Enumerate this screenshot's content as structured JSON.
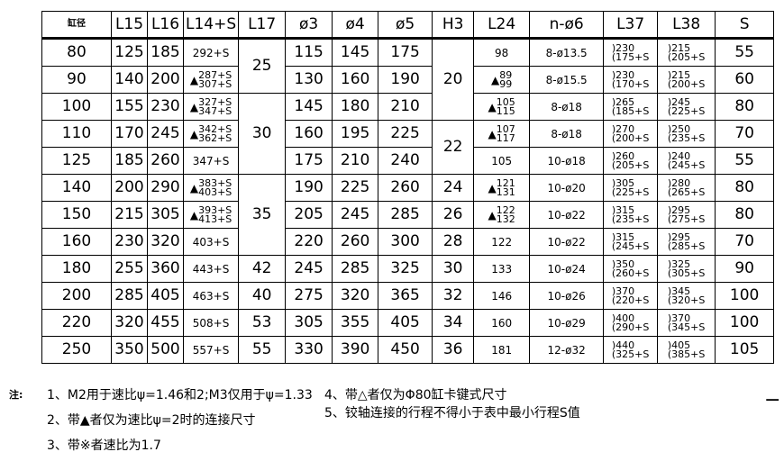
{
  "headers": [
    "缸径",
    "L15",
    "L16",
    "L14+S",
    "L17",
    "ø3",
    "ø4",
    "ø5",
    "H3",
    "L24",
    "n-ø6",
    "L37",
    "L38",
    "S"
  ],
  "rows": [
    {
      "bore": "80",
      "L15": "125",
      "L16": "185",
      "L14S": {
        "text": "292+S"
      },
      "phi3": "115",
      "phi4": "145",
      "phi5": "175",
      "L24": {
        "text": "98"
      },
      "n6": "8-ø13.5",
      "L37": [
        ")230",
        "(175+S"
      ],
      "L38": [
        ")215",
        "(205+S"
      ],
      "S": "55"
    },
    {
      "bore": "90",
      "L15": "140",
      "L16": "200",
      "L14S": {
        "mark": "▲",
        "top": "287+S",
        "bottom": "307+S"
      },
      "phi3": "130",
      "phi4": "160",
      "phi5": "190",
      "L24": {
        "mark": "▲",
        "top": "89",
        "bottom": "99"
      },
      "n6": "8-ø15.5",
      "L37": [
        ")230",
        "(170+S"
      ],
      "L38": [
        ")215",
        "(200+S"
      ],
      "S": "60"
    },
    {
      "bore": "100",
      "L15": "155",
      "L16": "230",
      "L14S": {
        "mark": "▲",
        "top": "327+S",
        "bottom": "347+S"
      },
      "phi3": "145",
      "phi4": "180",
      "phi5": "210",
      "L24": {
        "mark": "▲",
        "top": "105",
        "bottom": "115"
      },
      "n6": "8-ø18",
      "L37": [
        ")265",
        "(185+S"
      ],
      "L38": [
        ")245",
        "(225+S"
      ],
      "S": "80"
    },
    {
      "bore": "110",
      "L15": "170",
      "L16": "245",
      "L14S": {
        "mark": "▲",
        "top": "342+S",
        "bottom": "362+S"
      },
      "phi3": "160",
      "phi4": "195",
      "phi5": "225",
      "L24": {
        "mark": "▲",
        "top": "107",
        "bottom": "117"
      },
      "n6": "8-ø18",
      "L37": [
        ")270",
        "(200+S"
      ],
      "L38": [
        ")250",
        "(235+S"
      ],
      "S": "70"
    },
    {
      "bore": "125",
      "L15": "185",
      "L16": "260",
      "L14S": {
        "text": "347+S"
      },
      "phi3": "175",
      "phi4": "210",
      "phi5": "240",
      "L24": {
        "text": "105"
      },
      "n6": "10-ø18",
      "L37": [
        ")260",
        "(205+S"
      ],
      "L38": [
        ")240",
        "(245+S"
      ],
      "S": "55"
    },
    {
      "bore": "140",
      "L15": "200",
      "L16": "290",
      "L14S": {
        "mark": "▲",
        "top": "383+S",
        "bottom": "403+S"
      },
      "phi3": "190",
      "phi4": "225",
      "phi5": "260",
      "L24": {
        "mark": "▲",
        "top": "121",
        "bottom": "131"
      },
      "n6": "10-ø20",
      "L37": [
        ")305",
        "(225+S"
      ],
      "L38": [
        ")280",
        "(265+S"
      ],
      "S": "80"
    },
    {
      "bore": "150",
      "L15": "215",
      "L16": "305",
      "L14S": {
        "mark": "▲",
        "top": "393+S",
        "bottom": "413+S"
      },
      "phi3": "205",
      "phi4": "245",
      "phi5": "285",
      "L24": {
        "mark": "▲",
        "top": "122",
        "bottom": "132"
      },
      "n6": "10-ø22",
      "L37": [
        ")315",
        "(235+S"
      ],
      "L38": [
        ")295",
        "(275+S"
      ],
      "S": "80"
    },
    {
      "bore": "160",
      "L15": "230",
      "L16": "320",
      "L14S": {
        "text": "403+S"
      },
      "phi3": "220",
      "phi4": "260",
      "phi5": "300",
      "L24": {
        "text": "122"
      },
      "n6": "10-ø22",
      "L37": [
        ")315",
        "(245+S"
      ],
      "L38": [
        ")295",
        "(285+S"
      ],
      "S": "70"
    },
    {
      "bore": "180",
      "L15": "255",
      "L16": "360",
      "L14S": {
        "text": "443+S"
      },
      "phi3": "245",
      "phi4": "285",
      "phi5": "325",
      "L24": {
        "text": "133"
      },
      "n6": "10-ø24",
      "L37": [
        ")350",
        "(260+S"
      ],
      "L38": [
        ")325",
        "(305+S"
      ],
      "S": "90"
    },
    {
      "bore": "200",
      "L15": "285",
      "L16": "405",
      "L14S": {
        "text": "463+S"
      },
      "phi3": "275",
      "phi4": "320",
      "phi5": "365",
      "L24": {
        "text": "146"
      },
      "n6": "10-ø26",
      "L37": [
        ")370",
        "(220+S"
      ],
      "L38": [
        ")345",
        "(320+S"
      ],
      "S": "100"
    },
    {
      "bore": "220",
      "L15": "320",
      "L16": "455",
      "L14S": {
        "text": "508+S"
      },
      "phi3": "305",
      "phi4": "355",
      "phi5": "405",
      "L24": {
        "text": "160"
      },
      "n6": "10-ø29",
      "L37": [
        ")400",
        "(290+S"
      ],
      "L38": [
        ")370",
        "(345+S"
      ],
      "S": "100"
    },
    {
      "bore": "250",
      "L15": "350",
      "L16": "500",
      "L14S": {
        "text": "557+S"
      },
      "phi3": "330",
      "phi4": "390",
      "phi5": "450",
      "L24": {
        "text": "181"
      },
      "n6": "12-ø32",
      "L37": [
        ")440",
        "(325+S"
      ],
      "L38": [
        ")405",
        "(385+S"
      ],
      "S": "105"
    }
  ],
  "L17_groups": [
    {
      "value": "25",
      "span": 2
    },
    {
      "value": "30",
      "span": 3
    },
    {
      "value": "35",
      "span": 3
    },
    {
      "value": "42",
      "span": 1
    },
    {
      "value": "40",
      "span": 1
    },
    {
      "value": "53",
      "span": 1
    },
    {
      "value": "55",
      "span": 1
    }
  ],
  "H3_groups": [
    {
      "value": "20",
      "span": 3
    },
    {
      "value": "22",
      "span": 2
    },
    {
      "value": "24",
      "span": 1
    },
    {
      "value": "26",
      "span": 1
    },
    {
      "value": "28",
      "span": 1
    },
    {
      "value": "30",
      "span": 1
    },
    {
      "value": "32",
      "span": 1
    },
    {
      "value": "34",
      "span": 1
    },
    {
      "value": "36",
      "span": 1
    }
  ],
  "notes": {
    "label": "注:",
    "items": [
      "1、M2用于速比ψ=1.46和2;M3仅用于ψ=1.33",
      "2、带▲者仅为速比ψ=2时的连接尺寸",
      "3、带※者速比为1.7",
      "4、带△者仅为Φ80缸卡键式尺寸",
      "5、铰轴连接的行程不得小于表中最小行程S值"
    ]
  },
  "edge_mark": "−"
}
